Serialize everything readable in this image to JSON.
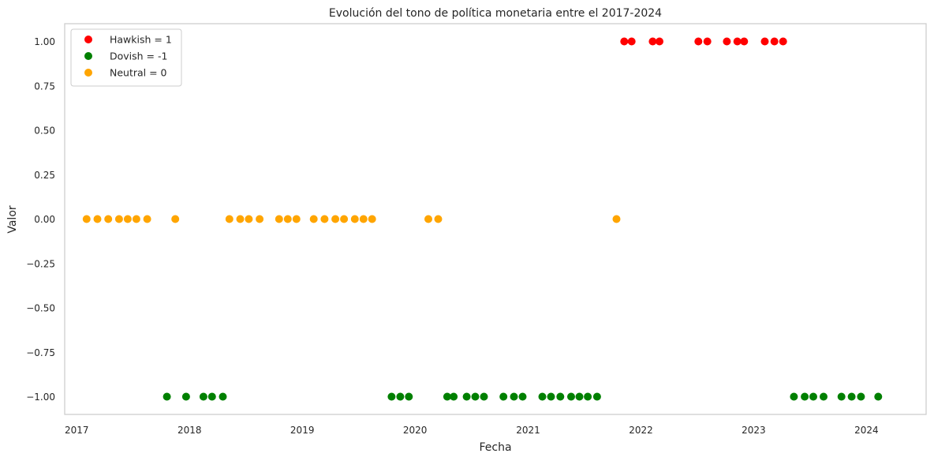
{
  "chart_data": {
    "type": "scatter",
    "title": "Evolución del tono de política monetaria entre el 2017-2024",
    "xlabel": "Fecha",
    "ylabel": "Valor",
    "xlim": [
      "2016-11-23",
      "2024-07-12"
    ],
    "ylim": [
      -1.1,
      1.1
    ],
    "x_ticks": [
      {
        "date": "2017-01-01",
        "label": "2017"
      },
      {
        "date": "2018-01-01",
        "label": "2018"
      },
      {
        "date": "2019-01-01",
        "label": "2019"
      },
      {
        "date": "2020-01-01",
        "label": "2020"
      },
      {
        "date": "2021-01-01",
        "label": "2021"
      },
      {
        "date": "2022-01-01",
        "label": "2022"
      },
      {
        "date": "2023-01-01",
        "label": "2023"
      },
      {
        "date": "2024-01-01",
        "label": "2024"
      }
    ],
    "y_ticks": [
      1.0,
      0.75,
      0.5,
      0.25,
      0.0,
      -0.25,
      -0.5,
      -0.75,
      -1.0
    ],
    "y_tick_labels": [
      "1.00",
      "0.75",
      "0.50",
      "0.25",
      "0.00",
      "−0.25",
      "−0.50",
      "−0.75",
      "−1.00"
    ],
    "grid": false,
    "legend_position": "top-left",
    "series": [
      {
        "name": "Hawkish = 1",
        "color": "#ff0000",
        "y": 1,
        "x": [
          "2021-11-08",
          "2021-12-02",
          "2022-02-08",
          "2022-03-02",
          "2022-07-06",
          "2022-08-04",
          "2022-10-06",
          "2022-11-09",
          "2022-12-01",
          "2023-02-06",
          "2023-03-09",
          "2023-04-06"
        ]
      },
      {
        "name": "Dovish = -1",
        "color": "#008000",
        "y": -1,
        "x": [
          "2017-10-20",
          "2017-12-21",
          "2018-02-15",
          "2018-03-15",
          "2018-04-19",
          "2019-10-17",
          "2019-11-14",
          "2019-12-12",
          "2020-04-14",
          "2020-05-05",
          "2020-06-16",
          "2020-07-14",
          "2020-08-11",
          "2020-10-13",
          "2020-11-16",
          "2020-12-14",
          "2021-02-16",
          "2021-03-16",
          "2021-04-15",
          "2021-05-20",
          "2021-06-16",
          "2021-07-13",
          "2021-08-12",
          "2023-05-11",
          "2023-06-15",
          "2023-07-13",
          "2023-08-15",
          "2023-10-12",
          "2023-11-14",
          "2023-12-14",
          "2024-02-08"
        ]
      },
      {
        "name": "Neutral = 0",
        "color": "#ffa500",
        "y": 0,
        "x": [
          "2017-02-02",
          "2017-03-09",
          "2017-04-13",
          "2017-05-18",
          "2017-06-15",
          "2017-07-13",
          "2017-08-17",
          "2017-11-16",
          "2018-05-10",
          "2018-06-14",
          "2018-07-12",
          "2018-08-16",
          "2018-10-18",
          "2018-11-15",
          "2018-12-13",
          "2019-02-07",
          "2019-03-14",
          "2019-04-18",
          "2019-05-16",
          "2019-06-20",
          "2019-07-18",
          "2019-08-15",
          "2020-02-13",
          "2020-03-16",
          "2021-10-14"
        ]
      }
    ]
  }
}
